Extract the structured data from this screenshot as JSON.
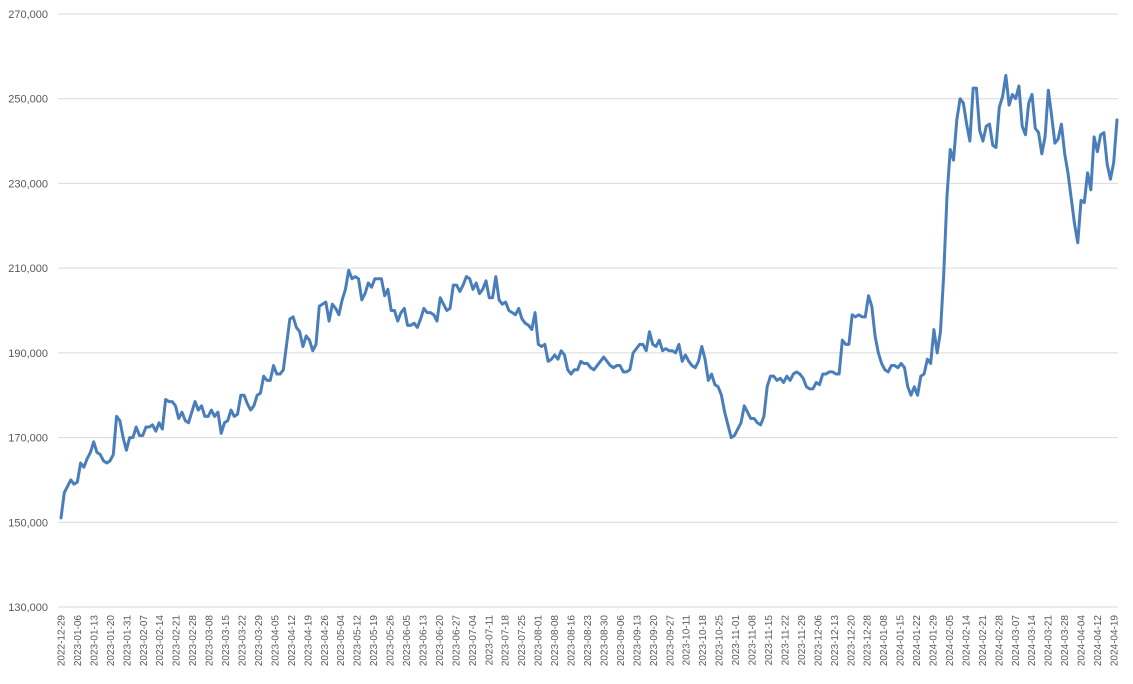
{
  "chart_data": {
    "type": "line",
    "title": "",
    "xlabel": "",
    "ylabel": "",
    "grid": true,
    "legend": "none",
    "ylim": [
      130000,
      270000
    ],
    "y_ticks": [
      130000,
      150000,
      170000,
      190000,
      210000,
      230000,
      250000,
      270000
    ],
    "y_tick_labels": [
      "130,000",
      "150,000",
      "170,000",
      "190,000",
      "210,000",
      "230,000",
      "250,000",
      "270,000"
    ],
    "x_tick_labels": [
      "2022-12-29",
      "2023-01-06",
      "2023-01-13",
      "2023-01-20",
      "2023-01-31",
      "2023-02-07",
      "2023-02-14",
      "2023-02-21",
      "2023-02-28",
      "2023-03-08",
      "2023-03-15",
      "2023-03-22",
      "2023-03-29",
      "2023-04-05",
      "2023-04-12",
      "2023-04-19",
      "2023-04-26",
      "2023-05-04",
      "2023-05-12",
      "2023-05-19",
      "2023-05-26",
      "2023-06-05",
      "2023-06-13",
      "2023-06-20",
      "2023-06-27",
      "2023-07-04",
      "2023-07-11",
      "2023-07-18",
      "2023-07-25",
      "2023-08-01",
      "2023-08-08",
      "2023-08-16",
      "2023-08-23",
      "2023-08-30",
      "2023-09-06",
      "2023-09-13",
      "2023-09-20",
      "2023-09-27",
      "2023-10-11",
      "2023-10-18",
      "2023-10-25",
      "2023-11-01",
      "2023-11-08",
      "2023-11-15",
      "2023-11-22",
      "2023-11-29",
      "2023-12-06",
      "2023-12-13",
      "2023-12-20",
      "2023-12-28",
      "2024-01-08",
      "2024-01-15",
      "2024-01-22",
      "2024-01-29",
      "2024-02-05",
      "2024-02-14",
      "2024-02-21",
      "2024-02-28",
      "2024-03-07",
      "2024-03-14",
      "2024-03-21",
      "2024-03-28",
      "2024-04-04",
      "2024-04-12",
      "2024-04-19"
    ],
    "series": [
      {
        "color": "#4a7ebb",
        "values": [
          151000,
          157000,
          158500,
          160000,
          159000,
          159500,
          164000,
          163000,
          165000,
          166500,
          169000,
          166500,
          166000,
          164500,
          164000,
          164500,
          166000,
          175000,
          174000,
          170000,
          167000,
          170000,
          170000,
          172500,
          170500,
          170500,
          172500,
          172500,
          173000,
          171500,
          173500,
          172000,
          179000,
          178500,
          178500,
          177500,
          174500,
          176000,
          174000,
          173500,
          176000,
          178500,
          176500,
          177500,
          175000,
          175000,
          176500,
          175000,
          176000,
          171000,
          173500,
          174000,
          176500,
          175000,
          175500,
          180000,
          180000,
          178000,
          176500,
          177500,
          180000,
          180500,
          184500,
          183500,
          183500,
          187000,
          185000,
          185000,
          186000,
          192000,
          198000,
          198500,
          196000,
          195000,
          191500,
          194000,
          193000,
          190500,
          192000,
          201000,
          201500,
          202000,
          197500,
          201500,
          200500,
          199000,
          202500,
          205000,
          209500,
          207500,
          208000,
          207500,
          202500,
          204000,
          206500,
          205500,
          207500,
          207500,
          207500,
          203500,
          205000,
          200000,
          200000,
          197500,
          199500,
          200500,
          196500,
          196500,
          197000,
          196000,
          198000,
          200500,
          199500,
          199500,
          199000,
          197500,
          203000,
          201500,
          200000,
          200500,
          206000,
          206000,
          204500,
          206000,
          208000,
          207500,
          205000,
          206500,
          204000,
          205000,
          207000,
          203000,
          203000,
          208000,
          202500,
          201500,
          202000,
          200000,
          199500,
          199000,
          200500,
          198000,
          197000,
          196500,
          195500,
          199500,
          192000,
          191500,
          192000,
          188000,
          188500,
          189500,
          188500,
          190500,
          189500,
          186000,
          185000,
          186000,
          186000,
          188000,
          187500,
          187500,
          186500,
          186000,
          187000,
          188000,
          189000,
          188000,
          187000,
          186500,
          187000,
          187000,
          185500,
          185500,
          186000,
          190000,
          191000,
          192000,
          192000,
          190500,
          195000,
          192000,
          191500,
          193000,
          190500,
          191000,
          190500,
          190500,
          190000,
          192000,
          188000,
          189500,
          188000,
          187000,
          186500,
          188000,
          191500,
          188500,
          183500,
          185000,
          182500,
          182000,
          180000,
          176000,
          173000,
          170000,
          170500,
          172000,
          173500,
          177500,
          176000,
          174500,
          174500,
          173500,
          173000,
          175000,
          182000,
          184500,
          184500,
          183500,
          184000,
          183000,
          184500,
          183500,
          185000,
          185500,
          185000,
          184000,
          182000,
          181500,
          181500,
          183000,
          182500,
          185000,
          185000,
          185500,
          185500,
          185000,
          185000,
          193000,
          192000,
          192000,
          199000,
          198500,
          199000,
          198500,
          198500,
          203500,
          201000,
          194000,
          190000,
          187500,
          186000,
          185500,
          187000,
          187000,
          186500,
          187500,
          186500,
          182000,
          180000,
          182000,
          180000,
          184500,
          185000,
          188500,
          187500,
          195500,
          190000,
          195000,
          208500,
          227000,
          238000,
          235500,
          245000,
          250000,
          249000,
          244000,
          240000,
          252500,
          252500,
          242500,
          240000,
          243500,
          244000,
          239000,
          238500,
          248000,
          250500,
          255500,
          248500,
          251000,
          250000,
          253000,
          243500,
          241500,
          249000,
          251000,
          243000,
          242000,
          237000,
          241000,
          252000,
          246000,
          239500,
          240500,
          244000,
          237000,
          232500,
          226500,
          220500,
          216000,
          226000,
          225500,
          232500,
          228500,
          241000,
          237500,
          241500,
          242000,
          234500,
          231000,
          235000,
          245000
        ]
      }
    ]
  }
}
